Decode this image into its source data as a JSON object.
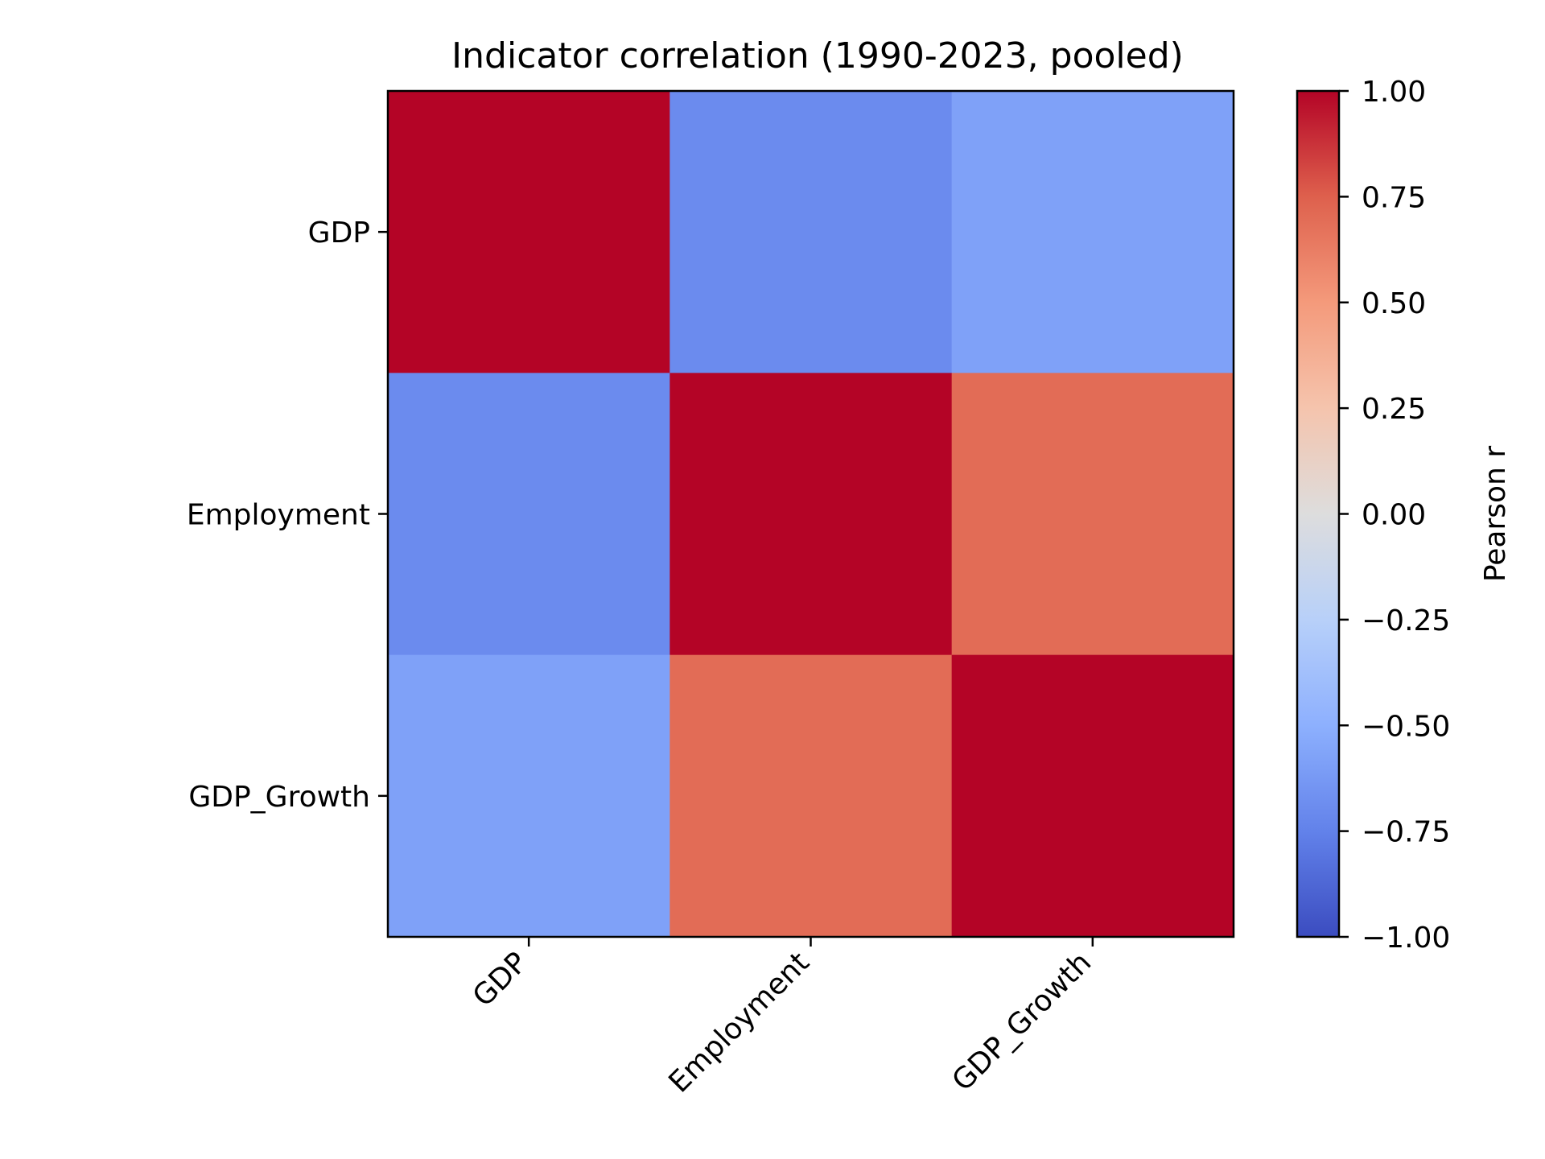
{
  "chart_data": {
    "type": "heatmap",
    "title": "Indicator correlation (1990-2023, pooled)",
    "row_labels": [
      "GDP",
      "Employment",
      "GDP_Growth"
    ],
    "col_labels": [
      "GDP",
      "Employment",
      "GDP_Growth"
    ],
    "values": [
      [
        1.0,
        -0.7,
        -0.58
      ],
      [
        -0.7,
        1.0,
        0.7
      ],
      [
        -0.58,
        0.7,
        1.0
      ]
    ],
    "colormap": "coolwarm",
    "vmin": -1.0,
    "vmax": 1.0,
    "colorbar": {
      "label": "Pearson r",
      "ticks": [
        "1.00",
        "0.75",
        "0.50",
        "0.25",
        "0.00",
        "−0.25",
        "−0.50",
        "−0.75",
        "−1.00"
      ],
      "tick_values": [
        1.0,
        0.75,
        0.5,
        0.25,
        0.0,
        -0.25,
        -0.5,
        -0.75,
        -1.0
      ]
    },
    "colors": {
      "low": "#3b4cc0",
      "mid": "#dddddd",
      "high": "#b40426"
    }
  }
}
